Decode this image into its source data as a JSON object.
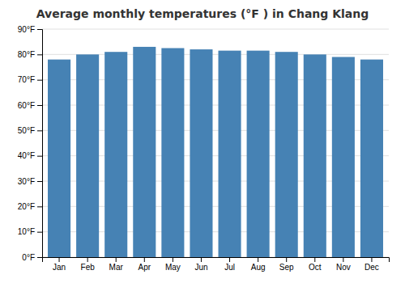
{
  "chart_data": {
    "type": "bar",
    "title": "Average monthly temperatures (°F ) in Chang Klang",
    "categories": [
      "Jan",
      "Feb",
      "Mar",
      "Apr",
      "May",
      "Jun",
      "Jul",
      "Aug",
      "Sep",
      "Oct",
      "Nov",
      "Dec"
    ],
    "values": [
      78,
      80,
      81,
      83,
      82.5,
      82,
      81.5,
      81.5,
      81,
      80,
      79,
      78
    ],
    "ylim": [
      0,
      90
    ],
    "yticks": [
      {
        "value": 0,
        "label": "0°F"
      },
      {
        "value": 10,
        "label": "10°F"
      },
      {
        "value": 20,
        "label": "20°F"
      },
      {
        "value": 30,
        "label": "30°F"
      },
      {
        "value": 40,
        "label": "40°F"
      },
      {
        "value": 50,
        "label": "50°F"
      },
      {
        "value": 60,
        "label": "60°F"
      },
      {
        "value": 70,
        "label": "70°F"
      },
      {
        "value": 80,
        "label": "80°F"
      },
      {
        "value": 90,
        "label": "90°F"
      }
    ],
    "grid": true
  }
}
